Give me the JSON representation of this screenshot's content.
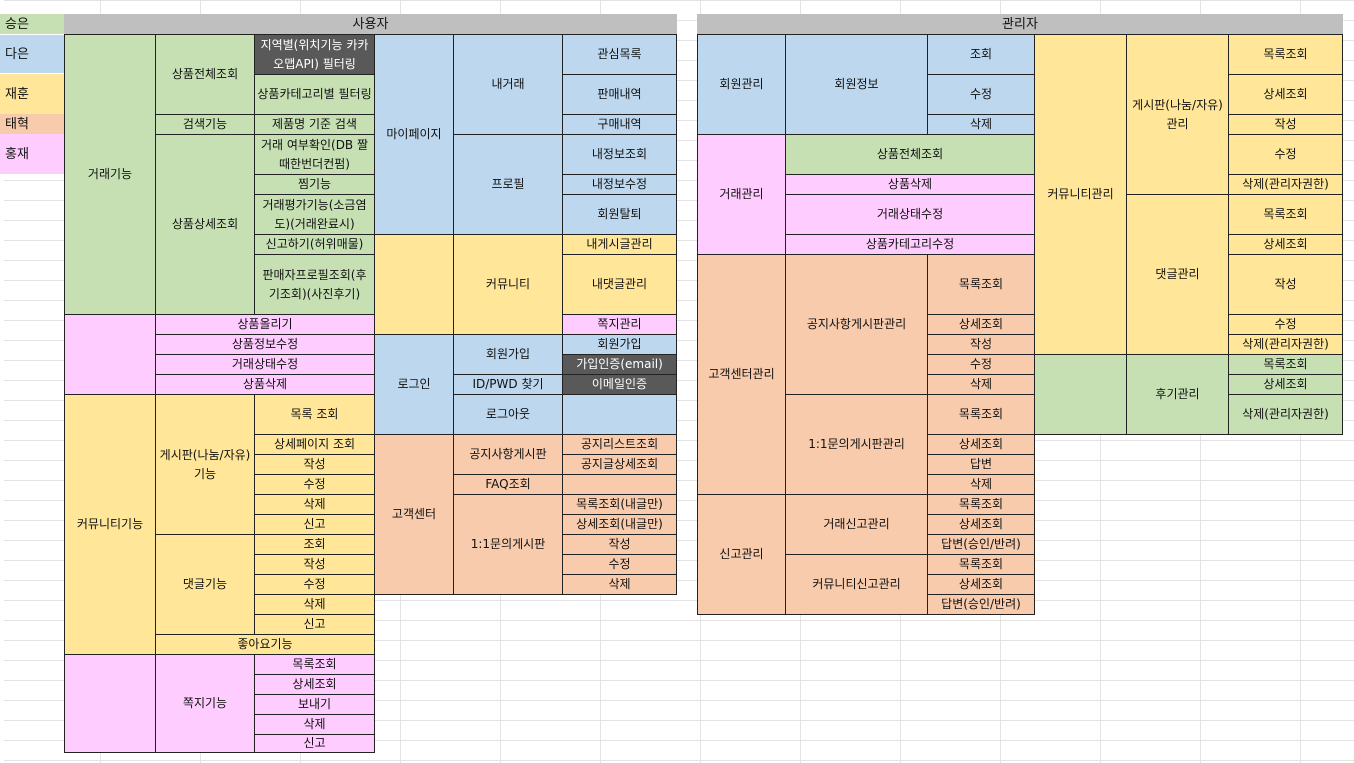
{
  "legend": [
    "승은",
    "다은",
    "재훈",
    "태혁",
    "홍재"
  ],
  "header": {
    "user": "사용자",
    "admin": "관리자"
  },
  "cells": [
    [
      "지역별(위치기능 카카오맵API) 필터링",
      "상품카테고리별 필터링",
      "제품명 기준 검색",
      "거래 여부확인(DB 짤때한번더컨펌)",
      "찜기능",
      "거래평가기능(소금염도)(거래완료시)",
      "신고하기(허위매물)",
      "판매자프로필조회(후기조회)(사진후기)"
    ],
    [
      "상품전체조회",
      "검색기능",
      "상품상세조회",
      "거래기능"
    ],
    [
      "상품올리기",
      "상품정보수정",
      "거래상태수정",
      "상품삭제"
    ],
    [
      "목록 조회",
      "상세페이지 조회",
      "작성",
      "수정",
      "삭제",
      "신고"
    ],
    [
      "조회",
      "작성",
      "수정",
      "삭제",
      "신고"
    ],
    [
      "게시판(나눔/자유) 기능",
      "댓글기능",
      "좋아요기능",
      "커뮤니티기능"
    ],
    [
      "목록조회",
      "상세조회",
      "보내기",
      "삭제",
      "신고",
      "쪽지기능"
    ],
    [
      "마이페이지",
      "내거래",
      "관심목록",
      "판매내역",
      "구매내역",
      "프로필",
      "내정보조회",
      "내정보수정",
      "회원탈퇴"
    ],
    [
      "커뮤니티",
      "내게시글관리",
      "내댓글관리",
      "쪽지관리"
    ],
    [
      "로그인",
      "회원가입",
      "회원가입",
      "가입인증(email)",
      "ID/PWD 찾기",
      "이메일인증",
      "로그아웃"
    ],
    [
      "고객센터",
      "공지사항게시판",
      "공지리스트조회",
      "공지글상세조회",
      "FAQ조회",
      "1:1문의게시판",
      "목록조회(내글만)",
      "상세조회(내글만)",
      "작성",
      "수정",
      "삭제"
    ],
    [
      "회원관리",
      "회원정보",
      "조회",
      "수정",
      "삭제"
    ],
    [
      "거래관리",
      "상품전체조회",
      "상품삭제",
      "거래상태수정",
      "상품카테고리수정"
    ],
    [
      "고객센터관리",
      "공지사항게시판관리",
      "목록조회",
      "상세조회",
      "작성",
      "수정",
      "삭제",
      "1:1문의게시판관리",
      "목록조회",
      "상세조회",
      "답변",
      "삭제"
    ],
    [
      "신고관리",
      "거래신고관리",
      "목록조회",
      "상세조회",
      "답변(승인/반려)",
      "커뮤니티신고관리",
      "목록조회",
      "상세조회",
      "답변(승인/반려)"
    ],
    [
      "커뮤니티관리",
      "게시판(나눔/자유) 관리",
      "목록조회",
      "상세조회",
      "작성",
      "수정",
      "삭제(관리자권한)",
      "댓글관리",
      "목록조회",
      "상세조회",
      "작성",
      "수정",
      "삭제(관리자권한)"
    ],
    [
      "후기관리",
      "목록조회",
      "상세조회",
      "삭제(관리자권한)"
    ]
  ]
}
